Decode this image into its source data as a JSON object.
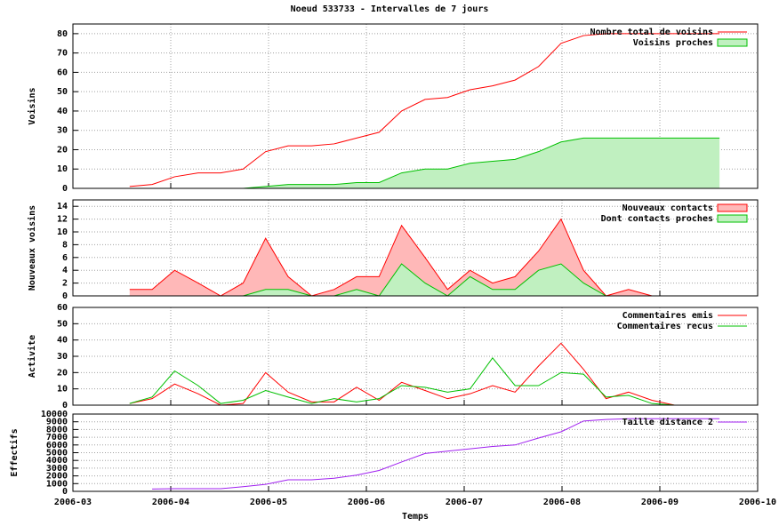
{
  "chart_data": [
    {
      "type": "line",
      "title": "Noeud 533733 - Intervalles de 7 jours",
      "ylabel": "Voisins",
      "x": [
        0.58,
        0.81,
        1.04,
        1.28,
        1.51,
        1.74,
        1.97,
        2.2,
        2.44,
        2.67,
        2.9,
        3.13,
        3.36,
        3.6,
        3.83,
        4.06,
        4.29,
        4.52,
        4.76,
        4.99,
        5.22,
        5.45,
        5.68,
        5.92,
        6.15,
        6.38,
        6.61
      ],
      "xlim": [
        0,
        7
      ],
      "xticks": [
        0,
        1,
        2,
        3,
        4,
        5,
        6,
        7
      ],
      "ylim": [
        0,
        85
      ],
      "yticks": [
        0,
        10,
        20,
        30,
        40,
        50,
        60,
        70,
        80
      ],
      "grid": true,
      "legend": "top-right",
      "series": [
        {
          "name": "Nombre total de voisins",
          "style": "line",
          "color": "#ff0000",
          "values": [
            1,
            2,
            6,
            8,
            8,
            10,
            19,
            22,
            22,
            23,
            26,
            29,
            40,
            46,
            47,
            51,
            53,
            56,
            63,
            75,
            79,
            80,
            80,
            80,
            80,
            80,
            80
          ]
        },
        {
          "name": "Voisins proches",
          "style": "area",
          "color": "#00c000",
          "fill_color": "#c0f0c0",
          "values": [
            null,
            null,
            null,
            null,
            null,
            0,
            1,
            2,
            2,
            2,
            3,
            3,
            8,
            10,
            10,
            13,
            14,
            15,
            19,
            24,
            26,
            26,
            26,
            26,
            26,
            26,
            26
          ]
        }
      ]
    },
    {
      "type": "line",
      "ylabel": "Nouveaux voisins",
      "x": [
        0.58,
        0.81,
        1.04,
        1.28,
        1.51,
        1.74,
        1.97,
        2.2,
        2.44,
        2.67,
        2.9,
        3.13,
        3.36,
        3.6,
        3.83,
        4.06,
        4.29,
        4.52,
        4.76,
        4.99,
        5.22,
        5.45,
        5.68,
        5.92,
        6.15,
        6.38,
        6.61
      ],
      "xlim": [
        0,
        7
      ],
      "xticks": [
        0,
        1,
        2,
        3,
        4,
        5,
        6,
        7
      ],
      "ylim": [
        0,
        15
      ],
      "yticks": [
        0,
        2,
        4,
        6,
        8,
        10,
        12,
        14
      ],
      "grid": true,
      "legend": "top-right",
      "series": [
        {
          "name": "Nouveaux contacts",
          "style": "area",
          "color": "#ff0000",
          "fill_color": "#ffb8b8",
          "values": [
            1,
            1,
            4,
            2,
            0,
            2,
            9,
            3,
            0,
            1,
            3,
            3,
            11,
            6,
            1,
            4,
            2,
            3,
            7,
            12,
            4,
            0,
            1,
            0,
            null,
            null,
            null
          ]
        },
        {
          "name": "Dont contacts proches",
          "style": "area",
          "color": "#00c000",
          "fill_color": "#c0f0c0",
          "values": [
            0,
            0,
            0,
            0,
            0,
            0,
            1,
            1,
            0,
            0,
            1,
            0,
            5,
            2,
            0,
            3,
            1,
            1,
            4,
            5,
            2,
            0,
            0,
            0,
            null,
            null,
            null
          ]
        }
      ]
    },
    {
      "type": "line",
      "ylabel": "Activite",
      "x": [
        0.58,
        0.81,
        1.04,
        1.28,
        1.51,
        1.74,
        1.97,
        2.2,
        2.44,
        2.67,
        2.9,
        3.13,
        3.36,
        3.6,
        3.83,
        4.06,
        4.29,
        4.52,
        4.76,
        4.99,
        5.22,
        5.45,
        5.68,
        5.92,
        6.15,
        6.38,
        6.61
      ],
      "xlim": [
        0,
        7
      ],
      "xticks": [
        0,
        1,
        2,
        3,
        4,
        5,
        6,
        7
      ],
      "ylim": [
        0,
        60
      ],
      "yticks": [
        0,
        10,
        20,
        30,
        40,
        50,
        60
      ],
      "grid": true,
      "legend": "top-right",
      "series": [
        {
          "name": "Commentaires emis",
          "style": "line",
          "color": "#ff0000",
          "values": [
            1,
            4,
            13,
            7,
            0,
            1,
            20,
            8,
            2,
            2,
            11,
            3,
            14,
            9,
            4,
            7,
            12,
            8,
            24,
            38,
            22,
            4,
            8,
            3,
            0,
            null,
            null
          ]
        },
        {
          "name": "Commentaires recus",
          "style": "line",
          "color": "#00c000",
          "values": [
            1,
            5,
            21,
            12,
            1,
            3,
            9,
            5,
            1,
            4,
            2,
            4,
            12,
            11,
            8,
            10,
            29,
            12,
            12,
            20,
            19,
            5,
            6,
            1,
            0,
            null,
            null
          ]
        }
      ]
    },
    {
      "type": "line",
      "ylabel": "Effectifs",
      "xlabel": "Temps",
      "x": [
        0.58,
        0.81,
        1.04,
        1.28,
        1.51,
        1.74,
        1.97,
        2.2,
        2.44,
        2.67,
        2.9,
        3.13,
        3.36,
        3.6,
        3.83,
        4.06,
        4.29,
        4.52,
        4.76,
        4.99,
        5.22,
        5.45,
        5.68,
        5.92,
        6.15,
        6.38,
        6.61
      ],
      "xlim": [
        0,
        7
      ],
      "xticks": [
        {
          "value": 0,
          "label": "2006-03"
        },
        {
          "value": 1,
          "label": "2006-04"
        },
        {
          "value": 2,
          "label": "2006-05"
        },
        {
          "value": 3,
          "label": "2006-06"
        },
        {
          "value": 4,
          "label": "2006-07"
        },
        {
          "value": 5,
          "label": "2006-08"
        },
        {
          "value": 6,
          "label": "2006-09"
        },
        {
          "value": 7,
          "label": "2006-10"
        }
      ],
      "ylim": [
        0,
        10000
      ],
      "yticks": [
        0,
        1000,
        2000,
        3000,
        4000,
        5000,
        6000,
        7000,
        8000,
        9000,
        10000
      ],
      "grid": true,
      "legend": "top-right",
      "series": [
        {
          "name": "Taille distance 2",
          "style": "line",
          "color": "#a020f0",
          "values": [
            null,
            300,
            350,
            350,
            350,
            600,
            900,
            1500,
            1500,
            1700,
            2100,
            2700,
            3800,
            4900,
            5200,
            5500,
            5800,
            6000,
            6900,
            7700,
            9100,
            9300,
            9400,
            9400,
            9400,
            9400,
            9400
          ]
        }
      ]
    }
  ]
}
